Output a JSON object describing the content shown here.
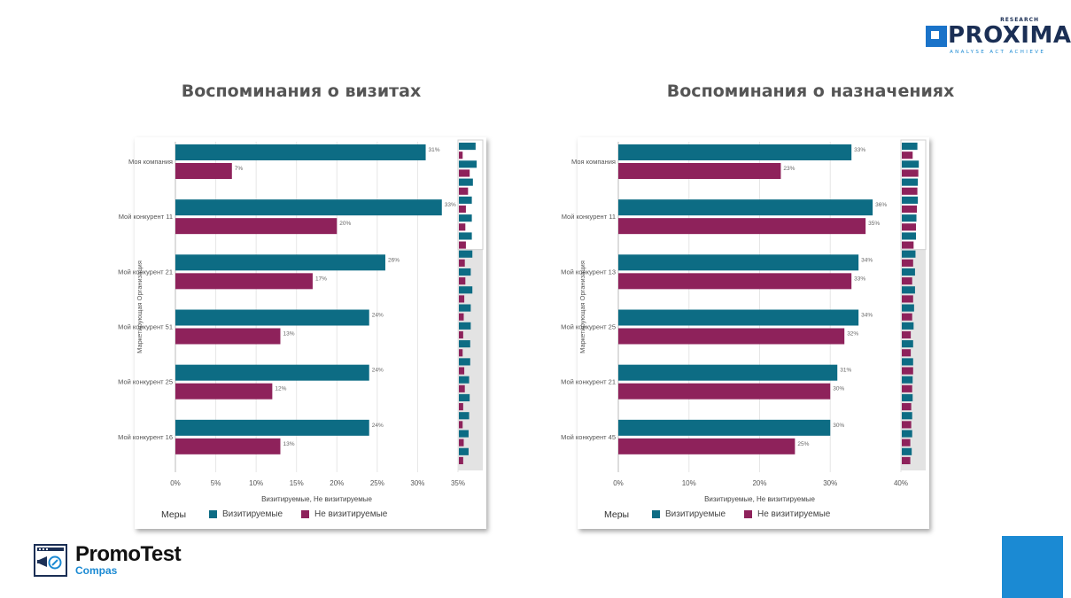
{
  "logos": {
    "proxima": {
      "word": "PROXIMA",
      "research": "RESEARCH",
      "tagline": "ANALYSE ACT ACHIEVE"
    },
    "promotest": {
      "name": "PromoTest",
      "sub": "Compas"
    }
  },
  "colors": {
    "visited": "#0d6c84",
    "not_visited": "#8e225b",
    "corner_block": "#1b8ad3"
  },
  "chart_data": [
    {
      "type": "bar",
      "orientation": "horizontal",
      "title": "Воспоминания о визитах",
      "xlabel": "Визитируемые, Не визитируемые",
      "ylabel": "Маркетирующая Организация",
      "xlim": [
        0,
        35
      ],
      "xticks": [
        "0%",
        "5%",
        "10%",
        "15%",
        "20%",
        "25%",
        "30%",
        "35%"
      ],
      "xtick_values": [
        0,
        5,
        10,
        15,
        20,
        25,
        30,
        35
      ],
      "categories": [
        "Моя компания",
        "Мой конкурент 11",
        "Мой конкурент 21",
        "Мой конкурент 51",
        "Мой конкурент 25",
        "Мой конкурент 16"
      ],
      "series": [
        {
          "name": "Визитируемые",
          "values": [
            31,
            33,
            26,
            24,
            24,
            24
          ],
          "labels": [
            "31%",
            "33%",
            "26%",
            "24%",
            "24%",
            "24%"
          ]
        },
        {
          "name": "Не визитируемые",
          "values": [
            7,
            20,
            17,
            13,
            12,
            13
          ],
          "labels": [
            "7%",
            "20%",
            "17%",
            "13%",
            "12%",
            "13%"
          ]
        }
      ],
      "overview": {
        "visible_rows": 6,
        "values": [
          [
            31,
            7
          ],
          [
            33,
            20
          ],
          [
            26,
            17
          ],
          [
            24,
            13
          ],
          [
            24,
            12
          ],
          [
            24,
            13
          ],
          [
            25,
            11
          ],
          [
            22,
            12
          ],
          [
            25,
            10
          ],
          [
            22,
            9
          ],
          [
            22,
            8
          ],
          [
            21,
            7
          ],
          [
            21,
            10
          ],
          [
            19,
            11
          ],
          [
            20,
            8
          ],
          [
            19,
            7
          ],
          [
            18,
            9
          ],
          [
            18,
            8
          ]
        ]
      },
      "legend_title": "Меры",
      "legend_position": "bottom-left",
      "grid": true
    },
    {
      "type": "bar",
      "orientation": "horizontal",
      "title": "Воспоминания о назначениях",
      "xlabel": "Визитируемые, Не визитируемые",
      "ylabel": "Маркетирующая Организация",
      "xlim": [
        0,
        40
      ],
      "xticks": [
        "0%",
        "10%",
        "20%",
        "30%",
        "40%"
      ],
      "xtick_values": [
        0,
        10,
        20,
        30,
        40
      ],
      "categories": [
        "Моя компания",
        "Мой конкурент 11",
        "Мой конкурент 13",
        "Мой конкурент 25",
        "Мой конкурент 21",
        "Мой конкурент 45"
      ],
      "series": [
        {
          "name": "Визитируемые",
          "values": [
            33,
            36,
            34,
            34,
            31,
            30
          ],
          "labels": [
            "33%",
            "36%",
            "34%",
            "34%",
            "31%",
            "30%"
          ]
        },
        {
          "name": "Не визитируемые",
          "values": [
            23,
            35,
            33,
            32,
            30,
            25
          ],
          "labels": [
            "23%",
            "35%",
            "33%",
            "32%",
            "30%",
            "25%"
          ]
        }
      ],
      "overview": {
        "visible_rows": 6,
        "values": [
          [
            33,
            23
          ],
          [
            36,
            35
          ],
          [
            34,
            33
          ],
          [
            34,
            32
          ],
          [
            31,
            30
          ],
          [
            30,
            25
          ],
          [
            29,
            24
          ],
          [
            28,
            22
          ],
          [
            28,
            24
          ],
          [
            26,
            22
          ],
          [
            25,
            19
          ],
          [
            24,
            19
          ],
          [
            24,
            24
          ],
          [
            23,
            22
          ],
          [
            23,
            20
          ],
          [
            22,
            20
          ],
          [
            22,
            18
          ],
          [
            21,
            18
          ]
        ]
      },
      "legend_title": "Меры",
      "legend_position": "bottom-left",
      "grid": true
    }
  ]
}
